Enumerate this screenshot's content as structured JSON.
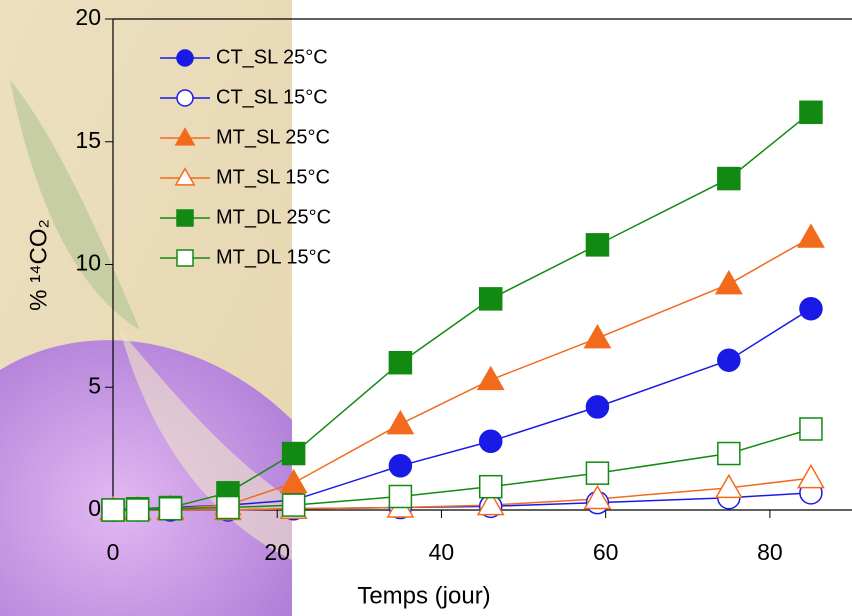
{
  "chart_data": {
    "type": "line",
    "x_label": "Temps (jour)",
    "y_label": "% ¹⁴CO₂",
    "x": [
      0,
      3,
      7,
      14,
      22,
      35,
      46,
      59,
      75,
      85
    ],
    "series": [
      {
        "name": "CT_SL 25°C",
        "color": "#1a1ae6",
        "marker": "circle",
        "filled": true,
        "values": [
          0,
          0.05,
          0.1,
          0.2,
          0.4,
          1.8,
          2.8,
          4.2,
          6.1,
          8.2
        ]
      },
      {
        "name": "CT_SL 15°C",
        "color": "#1a1ae6",
        "marker": "circle",
        "filled": false,
        "values": [
          0,
          0,
          0,
          0,
          0.05,
          0.1,
          0.15,
          0.3,
          0.5,
          0.7
        ]
      },
      {
        "name": "MT_SL 25°C",
        "color": "#f26b1d",
        "marker": "triangle",
        "filled": true,
        "values": [
          0,
          0,
          0.05,
          0.2,
          1.1,
          3.5,
          5.3,
          7.0,
          9.2,
          11.1
        ]
      },
      {
        "name": "MT_SL 15°C",
        "color": "#f26b1d",
        "marker": "triangle",
        "filled": false,
        "values": [
          0,
          0,
          0,
          0,
          0.05,
          0.1,
          0.2,
          0.45,
          0.9,
          1.3
        ]
      },
      {
        "name": "MT_DL 25°C",
        "color": "#128a12",
        "marker": "square",
        "filled": true,
        "values": [
          0,
          0.05,
          0.1,
          0.7,
          2.3,
          6.0,
          8.6,
          10.8,
          13.5,
          16.2
        ]
      },
      {
        "name": "MT_DL 15°C",
        "color": "#128a12",
        "marker": "square",
        "filled": false,
        "values": [
          0,
          0,
          0.05,
          0.1,
          0.2,
          0.55,
          0.95,
          1.5,
          2.3,
          3.3
        ]
      }
    ],
    "xlim": [
      0,
      90
    ],
    "ylim": [
      0,
      20
    ],
    "xticks": [
      0,
      20,
      40,
      60,
      80
    ],
    "yticks": [
      0,
      5,
      10,
      15,
      20
    ]
  }
}
